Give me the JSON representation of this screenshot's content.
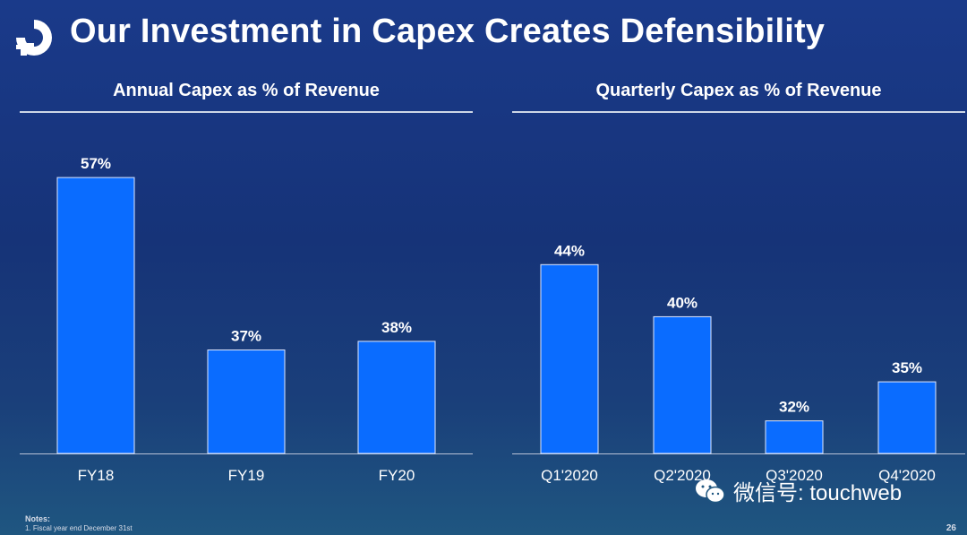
{
  "title": "Our Investment in Capex Creates Defensibility",
  "logo_icon": "digitalocean-logo-icon",
  "chart_data": [
    {
      "type": "bar",
      "title": "Annual Capex as % of Revenue",
      "categories": [
        "FY18",
        "FY19",
        "FY20"
      ],
      "values": [
        57,
        37,
        38
      ],
      "labels": [
        "57%",
        "37%",
        "38%"
      ],
      "ylim": [
        25,
        62
      ],
      "color": "#0a6cff"
    },
    {
      "type": "bar",
      "title": "Quarterly Capex as % of Revenue",
      "categories": [
        "Q1'2020",
        "Q2'2020",
        "Q3'2020",
        "Q4'2020"
      ],
      "values": [
        44,
        40,
        32,
        35
      ],
      "labels": [
        "44%",
        "40%",
        "32%",
        "35%"
      ],
      "ylim": [
        29.5,
        54
      ],
      "color": "#0a6cff"
    }
  ],
  "notes": {
    "heading": "Notes:",
    "items": [
      "1.   Fiscal year end December 31st"
    ]
  },
  "page_number": "26",
  "watermark": {
    "icon": "wechat-icon",
    "text": "微信号: touchweb"
  }
}
